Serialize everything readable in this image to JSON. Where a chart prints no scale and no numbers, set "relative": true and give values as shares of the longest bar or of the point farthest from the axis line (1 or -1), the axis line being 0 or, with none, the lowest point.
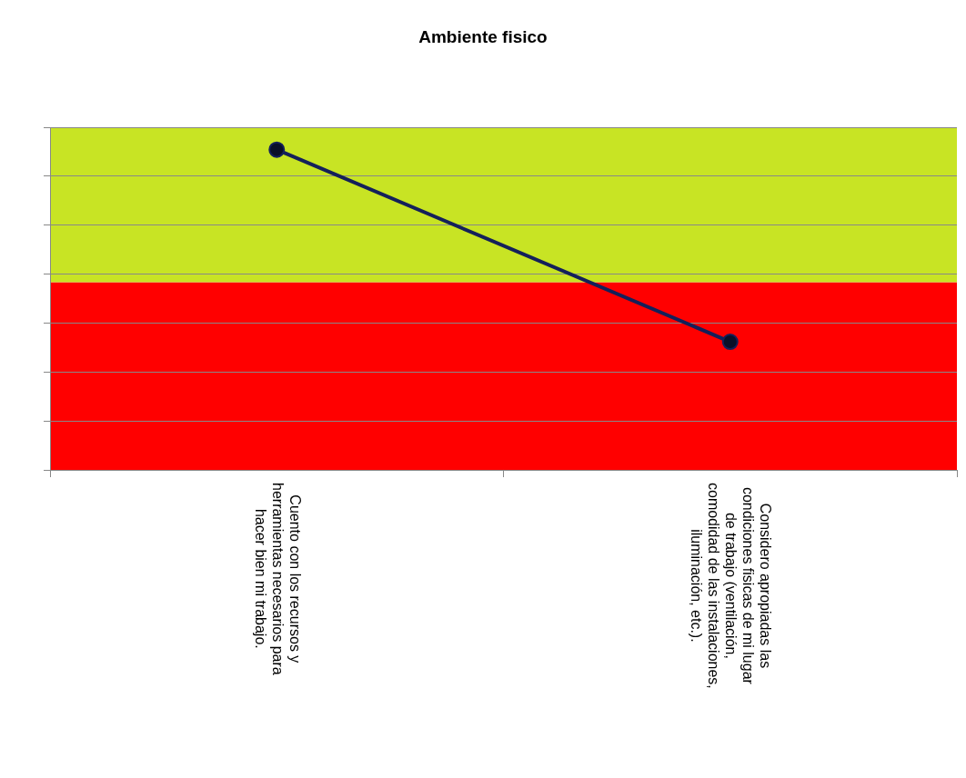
{
  "chart_data": {
    "type": "line",
    "title": "Ambiente fisico",
    "relative": true,
    "categories": [
      "Cuento con los recursos y herramientas necesarios para hacer bien mi trabajo.",
      "Considero apropiadas las condiciones fisicas de mi lugar de trabajo (ventilación, comodidad de las instalaciones, iluminación, etc.)."
    ],
    "series": [
      {
        "color": "#14205a",
        "values": [
          1,
          0.4
        ]
      }
    ],
    "bands": [
      {
        "axis": "y",
        "from": 0,
        "to": 0.586,
        "color": "#ff0000"
      },
      {
        "axis": "y",
        "from": 0.586,
        "to": 1.07,
        "color": "#c8e424"
      }
    ],
    "grid": "y",
    "legend": false,
    "marker": "circle",
    "line_style": "solid"
  }
}
